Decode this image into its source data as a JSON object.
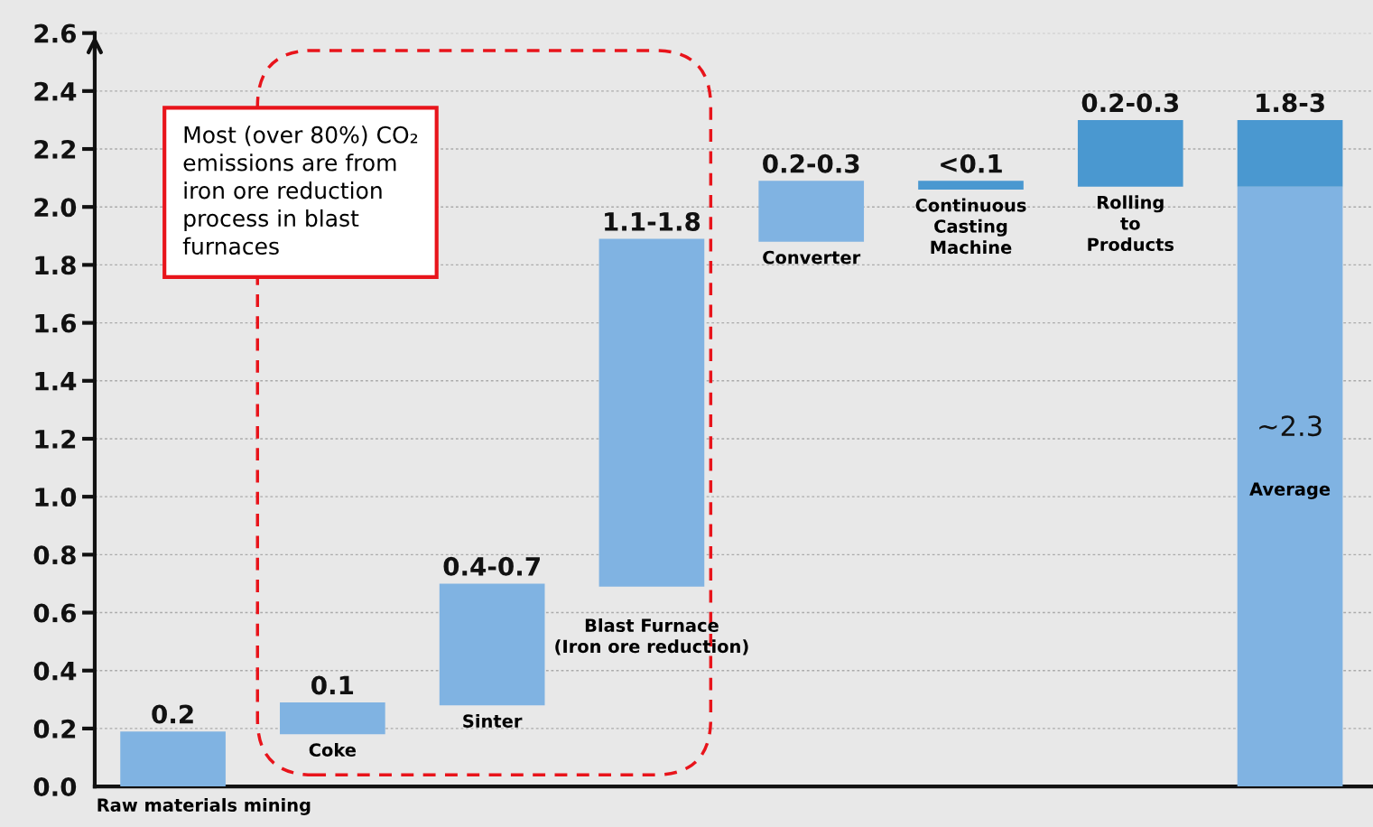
{
  "chart_data": {
    "type": "bar",
    "categories": [
      "Raw materials mining",
      "Coke",
      "Sinter",
      "Blast Furnace\n(Iron ore reduction)",
      "Converter",
      "Continuous\nCasting\nMachine",
      "Rolling\nto\nProducts",
      "Average"
    ],
    "series": [
      {
        "color": "#80b3e2",
        "colors": [
          "#80b3e2",
          "#80b3e2",
          "#80b3e2",
          "#80b3e2",
          "#80b3e2",
          "#4a98d0",
          "#4a98d0",
          "#80b3e2"
        ],
        "base": [
          0,
          0.18,
          0.28,
          0.69,
          1.88,
          2.06,
          2.07,
          0
        ],
        "values": [
          0.19,
          0.11,
          0.42,
          1.2,
          0.21,
          0.03,
          0.23,
          2.07
        ]
      },
      {
        "color": "#4a98d0",
        "base": [
          null,
          null,
          null,
          null,
          null,
          null,
          null,
          2.07
        ],
        "values": [
          null,
          null,
          null,
          null,
          null,
          null,
          null,
          0.23
        ]
      }
    ],
    "value_labels": [
      "0.2",
      "0.1",
      "0.4-0.7",
      "1.1-1.8",
      "0.2-0.3",
      "<0.1",
      "0.2-0.3",
      "1.8-3"
    ],
    "ylim": [
      0,
      2.6
    ],
    "yticks": [
      {
        "value": 0,
        "label": "0.0"
      },
      {
        "value": 0.2,
        "label": "0.2"
      },
      {
        "value": 0.4,
        "label": "0.4"
      },
      {
        "value": 0.6,
        "label": "0.6"
      },
      {
        "value": 0.8,
        "label": "0.8"
      },
      {
        "value": 1.0,
        "label": "1.0"
      },
      {
        "value": 1.2,
        "label": "1.2"
      },
      {
        "value": 1.4,
        "label": "1.4"
      },
      {
        "value": 1.6,
        "label": "1.6"
      },
      {
        "value": 1.8,
        "label": "1.8"
      },
      {
        "value": 2.0,
        "label": "2.0"
      },
      {
        "value": 2.2,
        "label": "2.2"
      },
      {
        "value": 2.4,
        "label": "2.4"
      },
      {
        "value": 2.6,
        "label": "2.6"
      }
    ],
    "grid": "y",
    "tick_labels": "y",
    "annotations": [
      "Most (over 80%) CO₂\nemissions are from\niron ore reduction\nprocess in blast\nfurnaces",
      "~2.3"
    ]
  }
}
